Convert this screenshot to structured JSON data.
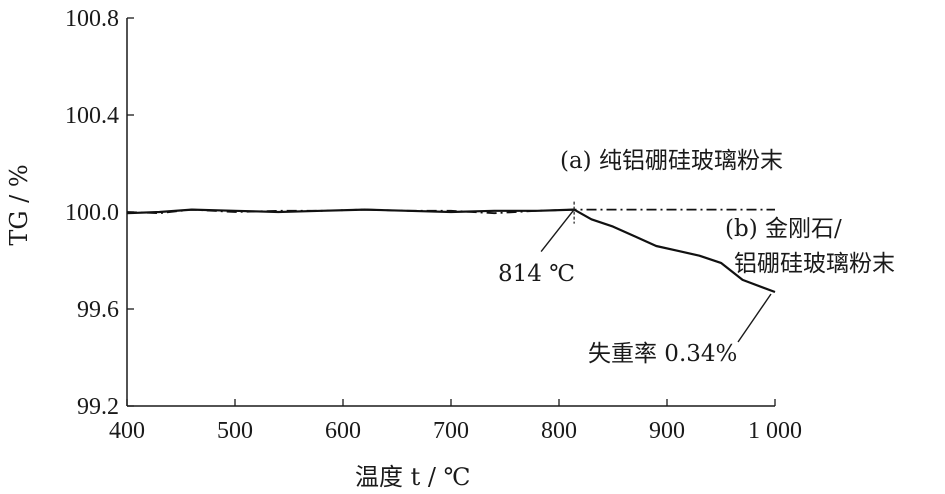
{
  "chart_data": {
    "type": "line",
    "xlabel": "温度 t / ℃",
    "ylabel": "TG / %",
    "xlim": [
      400,
      1000
    ],
    "ylim": [
      99.2,
      100.8
    ],
    "x_ticks": [
      400,
      500,
      600,
      700,
      800,
      900,
      1000
    ],
    "x_tick_labels": [
      "400",
      "500",
      "600",
      "700",
      "800",
      "900",
      "1 000"
    ],
    "y_ticks": [
      99.2,
      99.6,
      100.0,
      100.4,
      100.8
    ],
    "y_tick_labels": [
      "99.2",
      "99.6",
      "100.0",
      "100.4",
      "100.8"
    ],
    "grid": false,
    "series": [
      {
        "name": "(a) 纯铝硼硅玻璃粉末",
        "style": "dash-dot",
        "x": [
          400,
          430,
          460,
          500,
          540,
          580,
          620,
          660,
          700,
          740,
          780,
          814,
          850,
          900,
          950,
          1000
        ],
        "y": [
          100.0,
          99.995,
          100.01,
          100.0,
          100.005,
          100.005,
          100.01,
          100.005,
          100.005,
          99.995,
          100.005,
          100.01,
          100.01,
          100.01,
          100.01,
          100.01
        ]
      },
      {
        "name": "(b) 金刚石/铝硼硅玻璃粉末",
        "style": "solid",
        "x": [
          400,
          430,
          460,
          500,
          540,
          580,
          620,
          660,
          700,
          740,
          780,
          814,
          830,
          850,
          870,
          890,
          910,
          930,
          950,
          970,
          1000
        ],
        "y": [
          99.995,
          100.0,
          100.01,
          100.005,
          100.0,
          100.005,
          100.01,
          100.005,
          100.0,
          100.005,
          100.005,
          100.01,
          99.97,
          99.94,
          99.9,
          99.86,
          99.84,
          99.82,
          99.79,
          99.72,
          99.67
        ]
      }
    ],
    "annotations": {
      "onset": "814 ℃",
      "mass_loss": "失重率 0.34%"
    }
  }
}
